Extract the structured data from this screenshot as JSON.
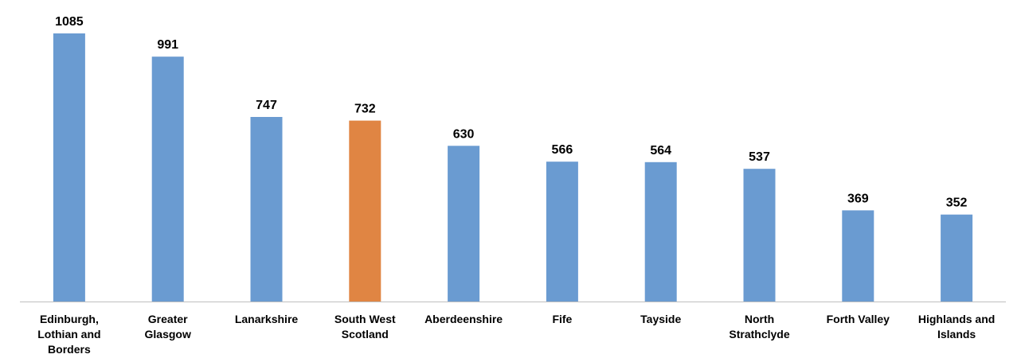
{
  "chart_data": {
    "type": "bar",
    "title": "",
    "xlabel": "",
    "ylabel": "",
    "categories": [
      "Edinburgh, Lothian and Borders",
      "Greater Glasgow",
      "Lanarkshire",
      "South West Scotland",
      "Aberdeenshire",
      "Fife",
      "Tayside",
      "North Strathclyde",
      "Forth Valley",
      "Highlands and Islands"
    ],
    "category_lines": [
      [
        "Edinburgh,",
        "Lothian and",
        "Borders"
      ],
      [
        "Greater",
        "Glasgow"
      ],
      [
        "Lanarkshire"
      ],
      [
        "South West",
        "Scotland"
      ],
      [
        "Aberdeenshire"
      ],
      [
        "Fife"
      ],
      [
        "Tayside"
      ],
      [
        "North",
        "Strathclyde"
      ],
      [
        "Forth Valley"
      ],
      [
        "Highlands and",
        "Islands"
      ]
    ],
    "values": [
      1085,
      991,
      747,
      732,
      630,
      566,
      564,
      537,
      369,
      352
    ],
    "value_labels": [
      "1085",
      "991",
      "747",
      "732",
      "630",
      "566",
      "564",
      "537",
      "369",
      "352"
    ],
    "highlight_index": 3,
    "ylim": [
      0,
      1085
    ],
    "grid": false,
    "legend": "none",
    "colors": {
      "bar": "#6a9bd1",
      "highlight": "#e08543",
      "axis": "#bfbfbf"
    }
  }
}
